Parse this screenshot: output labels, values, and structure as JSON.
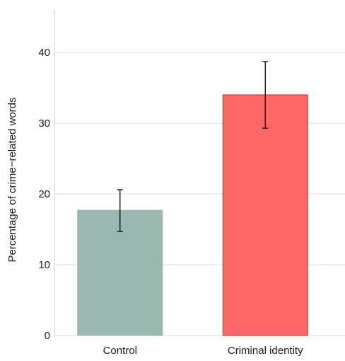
{
  "chart_data": {
    "type": "bar",
    "categories": [
      "Control",
      "Criminal identity"
    ],
    "values": [
      17.7,
      34.0
    ],
    "error_low": [
      14.7,
      29.3
    ],
    "error_high": [
      20.6,
      38.7
    ],
    "colors": [
      "#9bb8b0",
      "#ff6666"
    ],
    "bar_edge_colors": [
      "#9bb8b0",
      "#cc2a2a"
    ],
    "ylabel": "Percentage of crime−related words",
    "xlabel": "",
    "ylim": [
      0,
      46
    ],
    "yticks": [
      0,
      10,
      20,
      30,
      40
    ],
    "grid": "horizontal"
  }
}
